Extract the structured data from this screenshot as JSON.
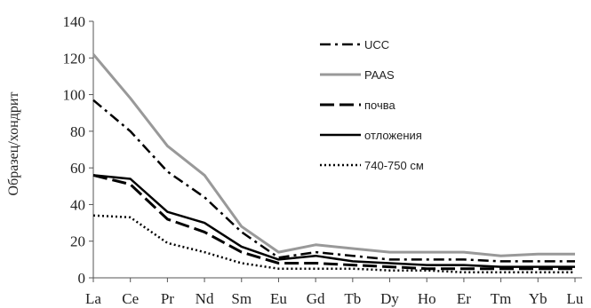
{
  "chart_data": {
    "type": "line",
    "title": "",
    "xlabel": "",
    "ylabel": "Образец/хондрит",
    "ylim": [
      0,
      140
    ],
    "yticks": [
      0,
      20,
      40,
      60,
      80,
      100,
      120,
      140
    ],
    "grid": false,
    "legend_position": "top-right",
    "categories": [
      "La",
      "Ce",
      "Pr",
      "Nd",
      "Sm",
      "Eu",
      "Gd",
      "Tb",
      "Dy",
      "Ho",
      "Er",
      "Tm",
      "Yb",
      "Lu"
    ],
    "series": [
      {
        "name": "UCC",
        "style": "dash-dot",
        "color": "#000000",
        "values": [
          97,
          80,
          58,
          44,
          25,
          11,
          14,
          12,
          10,
          10,
          10,
          9,
          9,
          9
        ]
      },
      {
        "name": "PAAS",
        "style": "solid",
        "color": "#999999",
        "values": [
          122,
          98,
          72,
          56,
          28,
          14,
          18,
          16,
          14,
          14,
          14,
          12,
          13,
          13
        ]
      },
      {
        "name": "почва",
        "style": "long-dash",
        "color": "#000000",
        "values": [
          56,
          51,
          32,
          25,
          14,
          8,
          8,
          7,
          6,
          5,
          5,
          5,
          5,
          5
        ]
      },
      {
        "name": "отложения",
        "style": "solid",
        "color": "#000000",
        "values": [
          56,
          54,
          36,
          30,
          17,
          10,
          12,
          9,
          8,
          7,
          7,
          6,
          6,
          6
        ]
      },
      {
        "name": "740-750 см",
        "style": "dotted",
        "color": "#000000",
        "values": [
          34,
          33,
          19,
          14,
          8,
          5,
          5,
          5,
          4,
          4,
          3,
          3,
          3,
          3
        ]
      }
    ]
  }
}
